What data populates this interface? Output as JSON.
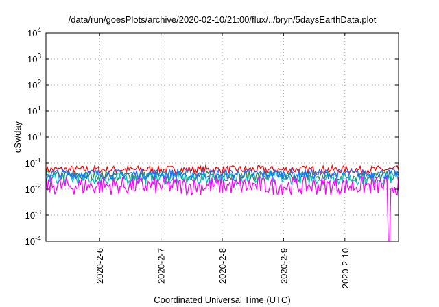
{
  "chart_data": {
    "type": "line",
    "title": "/data/run/goesPlots/archive/2020-02-10/21:00/flux/../bryn/5daysEarthData.plot",
    "xlabel": "Coordinated Universal Time (UTC)",
    "ylabel": "cSv/day",
    "y_scale": "log",
    "ylim": [
      0.0001,
      10000
    ],
    "xlim": [
      "2020-02-05T03:00",
      "2020-02-10T21:00"
    ],
    "grid": true,
    "y_ticks": [
      {
        "value": 0.0001,
        "base": "10",
        "exp": "-4"
      },
      {
        "value": 0.001,
        "base": "10",
        "exp": "-3"
      },
      {
        "value": 0.01,
        "base": "10",
        "exp": "-2"
      },
      {
        "value": 0.1,
        "base": "10",
        "exp": "-1"
      },
      {
        "value": 1,
        "base": "10",
        "exp": "0"
      },
      {
        "value": 10,
        "base": "10",
        "exp": "1"
      },
      {
        "value": 100,
        "base": "10",
        "exp": "2"
      },
      {
        "value": 1000,
        "base": "10",
        "exp": "3"
      },
      {
        "value": 10000,
        "base": "10",
        "exp": "4"
      }
    ],
    "x_ticks": [
      {
        "value": "2020-02-06T00:00",
        "label": "2020-2-6"
      },
      {
        "value": "2020-02-07T00:00",
        "label": "2020-2-7"
      },
      {
        "value": "2020-02-08T00:00",
        "label": "2020-2-8"
      },
      {
        "value": "2020-02-09T00:00",
        "label": "2020-2-9"
      },
      {
        "value": "2020-02-10T00:00",
        "label": "2020-2-10"
      }
    ],
    "series": [
      {
        "color": "#ff0000",
        "upper": 0.08,
        "lower": 0.04
      },
      {
        "color": "#2e8b57",
        "upper": 0.05,
        "lower": 0.02
      },
      {
        "color": "#00bfbf",
        "upper": 0.045,
        "lower": 0.015
      },
      {
        "color": "#1e6cff",
        "upper": 0.06,
        "lower": 0.025
      },
      {
        "color": "#ff00ff",
        "upper": 0.03,
        "lower": 0.006
      }
    ],
    "dropout": {
      "start": "2020-02-10T17:00",
      "end": "2020-02-10T17:30",
      "value": 0.0001
    }
  }
}
